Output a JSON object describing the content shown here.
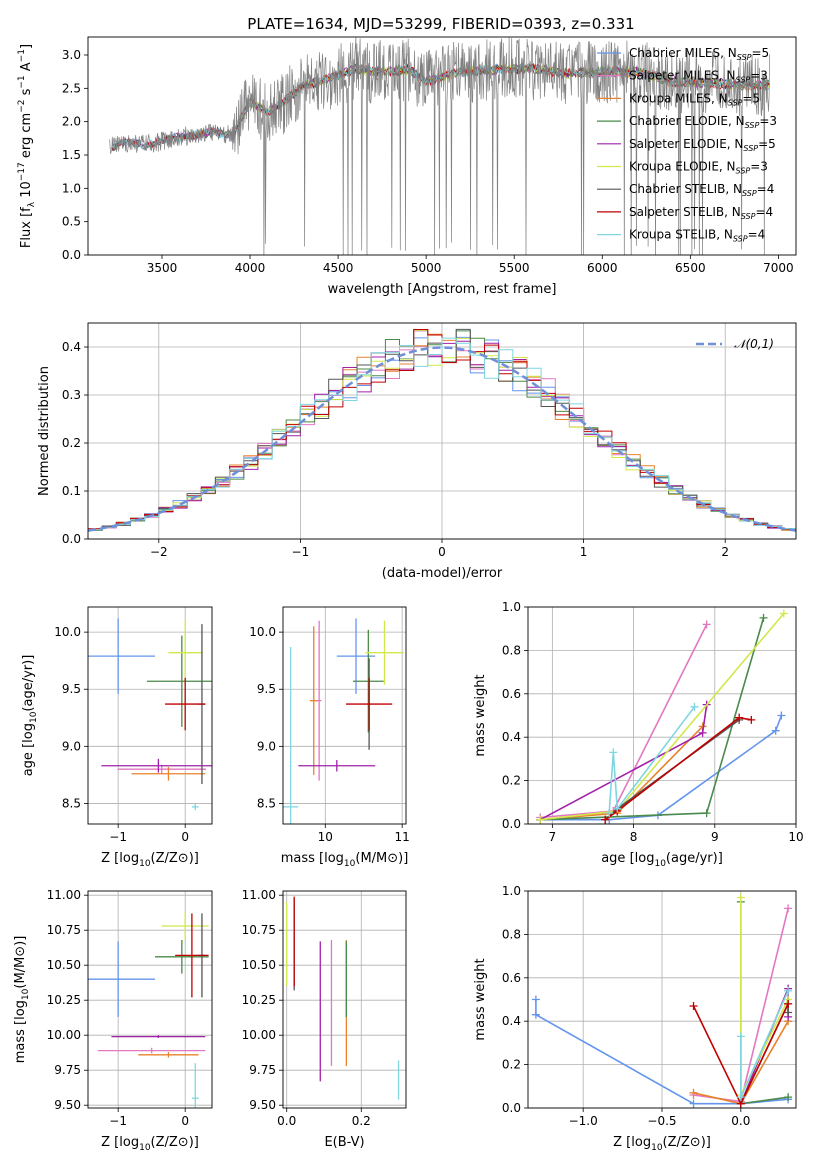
{
  "figure": {
    "title": "PLATE=1634, MJD=53299, FIBERID=0393, z=0.331"
  },
  "series_meta": [
    {
      "name": "Chabrier MILES, N$_{SSP}$=5",
      "label": "Chabrier MILES, N",
      "n": "=5",
      "color": "#6495ed"
    },
    {
      "name": "Salpeter MILES, N$_{SSP}$=3",
      "label": "Salpeter MILES, N",
      "n": "=3",
      "color": "#e377c2"
    },
    {
      "name": "Kroupa MILES, N$_{SSP}$=5",
      "label": "Kroupa MILES, N",
      "n": "=5",
      "color": "#e8822c"
    },
    {
      "name": "Chabrier ELODIE, N$_{SSP}$=3",
      "label": "Chabrier ELODIE, N",
      "n": "=3",
      "color": "#4a8a4a"
    },
    {
      "name": "Salpeter ELODIE, N$_{SSP}$=5",
      "label": "Salpeter ELODIE, N",
      "n": "=5",
      "color": "#a020a8"
    },
    {
      "name": "Kroupa ELODIE, N$_{SSP}$=3",
      "label": "Kroupa ELODIE, N",
      "n": "=3",
      "color": "#d2e84a"
    },
    {
      "name": "Chabrier STELIB, N$_{SSP}$=4",
      "label": "Chabrier STELIB, N",
      "n": "=4",
      "color": "#555555"
    },
    {
      "name": "Salpeter STELIB, N$_{SSP}$=4",
      "label": "Salpeter STELIB, N",
      "n": "=4",
      "color": "#c00000"
    },
    {
      "name": "Kroupa STELIB, N$_{SSP}$=4",
      "label": "Kroupa STELIB, N",
      "n": "=4",
      "color": "#7fd6e0"
    }
  ],
  "chart_data": [
    {
      "id": "spectrum",
      "type": "line",
      "title": "PLATE=1634, MJD=53299, FIBERID=0393, z=0.331",
      "xlabel": "wavelength [Angstrom, rest frame]",
      "ylabel": "Flux [f_λ 10^{-17} erg cm^{-2} s^{-1} A^{-1}]",
      "xlim": [
        3080,
        7100
      ],
      "ylim": [
        0,
        3.27
      ],
      "xticks": [
        3500,
        4000,
        4500,
        5000,
        5500,
        6000,
        6500,
        7000
      ],
      "yticks": [
        0.0,
        0.5,
        1.0,
        1.5,
        2.0,
        2.5,
        3.0
      ],
      "data_flux_envelope": {
        "x": [
          3200,
          3300,
          3400,
          3500,
          3600,
          3700,
          3800,
          3900,
          4000,
          4100,
          4200,
          4300,
          4400,
          4500,
          4600,
          4700,
          4800,
          4900,
          5000,
          5200,
          5400,
          5600,
          5800,
          6000,
          6200,
          6400,
          6600,
          6800,
          6950
        ],
        "y": [
          1.62,
          1.68,
          1.66,
          1.7,
          1.78,
          1.8,
          1.85,
          1.8,
          2.3,
          2.15,
          2.3,
          2.55,
          2.6,
          2.7,
          2.8,
          2.75,
          2.75,
          2.78,
          2.6,
          2.75,
          2.78,
          2.8,
          2.72,
          2.75,
          2.75,
          2.6,
          2.58,
          2.55,
          2.55
        ]
      },
      "data_noise_amplitude": 0.6,
      "legend": "upper right"
    },
    {
      "id": "residuals",
      "type": "histogram",
      "xlabel": "(data-model)/error",
      "ylabel": "Normed distribution",
      "xlim": [
        -2.5,
        2.5
      ],
      "ylim": [
        0,
        0.45
      ],
      "xticks": [
        -2,
        -1,
        0,
        1,
        2
      ],
      "yticks": [
        0.0,
        0.1,
        0.2,
        0.3,
        0.4
      ],
      "reference": {
        "name": "𝒩(0,1)",
        "mean": 0,
        "sigma": 1
      },
      "bin_width": 0.1,
      "legend": "upper right"
    },
    {
      "id": "age_vs_Z",
      "type": "errorbar",
      "xlabel": "Z [log10(Z/Z⊙)]",
      "ylabel": "age [log10(age/yr)]",
      "xlim": [
        -1.45,
        0.4
      ],
      "ylim": [
        8.32,
        10.22
      ],
      "xticks": [
        -1,
        0
      ],
      "yticks": [
        8.5,
        9.0,
        9.5,
        10.0
      ],
      "points": [
        {
          "s": 0,
          "x": -1.0,
          "xerr": 0.55,
          "y": 9.79,
          "yerr": 0.33
        },
        {
          "s": 1,
          "x": -0.35,
          "xerr": 0.66,
          "y": 8.8,
          "yerr": 0.04
        },
        {
          "s": 2,
          "x": -0.25,
          "xerr": 0.55,
          "y": 8.76,
          "yerr": 0.06
        },
        {
          "s": 3,
          "x": -0.05,
          "xerr": 0.52,
          "y": 9.57,
          "yerr": 0.4
        },
        {
          "s": 4,
          "x": -0.4,
          "xerr": 0.85,
          "y": 8.83,
          "yerr": 0.06
        },
        {
          "s": 5,
          "x": 0.0,
          "xerr": 0.25,
          "y": 9.82,
          "yerr": 0.28
        },
        {
          "s": 6,
          "x": 0.25,
          "xerr": 0.05,
          "y": 9.37,
          "yerr": 0.7
        },
        {
          "s": 7,
          "x": 0.0,
          "xerr": 0.3,
          "y": 9.37,
          "yerr": 0.23
        },
        {
          "s": 8,
          "x": 0.15,
          "xerr": 0.05,
          "y": 8.47,
          "yerr": 0.03
        }
      ]
    },
    {
      "id": "age_vs_mass",
      "type": "errorbar",
      "xlabel": "mass [log10(M/M⊙)]",
      "ylabel": "",
      "xlim": [
        9.45,
        11.05
      ],
      "ylim": [
        8.32,
        10.22
      ],
      "xticks": [
        9,
        10,
        11
      ],
      "yticks": [
        8.5,
        9.0,
        9.5,
        10.0
      ],
      "points": [
        {
          "s": 0,
          "x": 10.4,
          "xerr": 0.25,
          "y": 9.79,
          "yerr": 0.33
        },
        {
          "s": 1,
          "x": 9.92,
          "xerr": 0.03,
          "y": 9.4,
          "yerr": 0.7
        },
        {
          "s": 2,
          "x": 9.85,
          "xerr": 0.05,
          "y": 9.4,
          "yerr": 0.65
        },
        {
          "s": 3,
          "x": 10.56,
          "xerr": 0.2,
          "y": 9.57,
          "yerr": 0.45
        },
        {
          "s": 4,
          "x": 10.15,
          "xerr": 0.5,
          "y": 8.83,
          "yerr": 0.05
        },
        {
          "s": 5,
          "x": 10.77,
          "xerr": 0.25,
          "y": 9.82,
          "yerr": 0.28
        },
        {
          "s": 6,
          "x": 10.57,
          "xerr": 0.02,
          "y": 9.37,
          "yerr": 0.4
        },
        {
          "s": 7,
          "x": 10.57,
          "xerr": 0.3,
          "y": 9.37,
          "yerr": 0.23
        },
        {
          "s": 8,
          "x": 9.55,
          "xerr": 0.1,
          "y": 8.47,
          "yerr": 1.4
        }
      ]
    },
    {
      "id": "mass_weight_vs_age",
      "type": "line",
      "xlabel": "age [log10(age/yr)]",
      "ylabel": "mass weight",
      "xlim": [
        6.7,
        10.0
      ],
      "ylim": [
        0,
        1.0
      ],
      "xticks": [
        7,
        8,
        9,
        10
      ],
      "yticks": [
        0.0,
        0.2,
        0.4,
        0.6,
        0.8,
        1.0
      ],
      "series": [
        {
          "s": 0,
          "x": [
            6.85,
            7.7,
            8.3,
            9.75,
            9.82
          ],
          "y": [
            0.02,
            0.02,
            0.04,
            0.43,
            0.5
          ]
        },
        {
          "s": 1,
          "x": [
            6.85,
            7.75,
            8.9
          ],
          "y": [
            0.03,
            0.06,
            0.92
          ]
        },
        {
          "s": 2,
          "x": [
            6.85,
            7.8,
            8.85
          ],
          "y": [
            0.02,
            0.05,
            0.45
          ]
        },
        {
          "s": 3,
          "x": [
            6.85,
            8.9,
            9.6
          ],
          "y": [
            0.02,
            0.05,
            0.95
          ]
        },
        {
          "s": 4,
          "x": [
            6.85,
            8.85,
            8.9
          ],
          "y": [
            0.02,
            0.42,
            0.55
          ]
        },
        {
          "s": 5,
          "x": [
            6.85,
            7.8,
            9.85
          ],
          "y": [
            0.02,
            0.06,
            0.97
          ]
        },
        {
          "s": 6,
          "x": [
            7.65,
            7.8,
            9.3
          ],
          "y": [
            0.02,
            0.07,
            0.48
          ]
        },
        {
          "s": 7,
          "x": [
            7.65,
            7.8,
            9.3,
            9.45
          ],
          "y": [
            0.02,
            0.06,
            0.49,
            0.48
          ]
        },
        {
          "s": 8,
          "x": [
            7.7,
            7.75,
            7.8,
            8.75
          ],
          "y": [
            0.05,
            0.33,
            0.07,
            0.54
          ]
        }
      ]
    },
    {
      "id": "mass_vs_Z",
      "type": "errorbar",
      "xlabel": "Z [log10(Z/Z⊙)]",
      "ylabel": "mass [log10(M/M⊙)]",
      "xlim": [
        -1.45,
        0.4
      ],
      "ylim": [
        9.48,
        11.03
      ],
      "xticks": [
        -1,
        0
      ],
      "yticks": [
        9.5,
        9.75,
        10.0,
        10.25,
        10.5,
        10.75,
        11.0
      ],
      "points": [
        {
          "s": 0,
          "x": -1.0,
          "xerr": 0.55,
          "y": 10.4,
          "yerr": 0.27
        },
        {
          "s": 1,
          "x": -0.5,
          "xerr": 0.8,
          "y": 9.89,
          "yerr": 0.02
        },
        {
          "s": 2,
          "x": -0.25,
          "xerr": 0.45,
          "y": 9.86,
          "yerr": 0.02
        },
        {
          "s": 3,
          "x": -0.05,
          "xerr": 0.4,
          "y": 10.56,
          "yerr": 0.12
        },
        {
          "s": 4,
          "x": -0.4,
          "xerr": 0.7,
          "y": 9.99,
          "yerr": 0.01
        },
        {
          "s": 5,
          "x": 0.0,
          "xerr": 0.35,
          "y": 10.78,
          "yerr": 0.1
        },
        {
          "s": 6,
          "x": 0.25,
          "xerr": 0.05,
          "y": 10.57,
          "yerr": 0.3
        },
        {
          "s": 7,
          "x": 0.1,
          "xerr": 0.25,
          "y": 10.57,
          "yerr": 0.3
        },
        {
          "s": 8,
          "x": 0.15,
          "xerr": 0.05,
          "y": 9.55,
          "yerr": 0.25
        }
      ]
    },
    {
      "id": "mass_vs_ebv",
      "type": "errorbar",
      "xlabel": "E(B-V)",
      "ylabel": "",
      "xlim": [
        -0.01,
        0.32
      ],
      "ylim": [
        9.48,
        11.03
      ],
      "xticks": [
        0.0,
        0.2
      ],
      "yticks": [
        9.5,
        9.75,
        10.0,
        10.25,
        10.5,
        10.75,
        11.0
      ],
      "points": [
        {
          "s": 0,
          "x": 0.16,
          "xerr": 0,
          "y": 10.4,
          "yerr": 0.27
        },
        {
          "s": 1,
          "x": 0.12,
          "xerr": 0,
          "y": 10.23,
          "yerr": 0.45
        },
        {
          "s": 2,
          "x": 0.16,
          "xerr": 0,
          "y": 10.23,
          "yerr": 0.45
        },
        {
          "s": 3,
          "x": 0.16,
          "xerr": 0,
          "y": 10.4,
          "yerr": 0.27
        },
        {
          "s": 4,
          "x": 0.09,
          "xerr": 0,
          "y": 10.17,
          "yerr": 0.5
        },
        {
          "s": 5,
          "x": 0.0,
          "xerr": 0,
          "y": 10.65,
          "yerr": 0.3
        },
        {
          "s": 6,
          "x": 0.02,
          "xerr": 0,
          "y": 10.65,
          "yerr": 0.33
        },
        {
          "s": 7,
          "x": 0.02,
          "xerr": 0,
          "y": 10.67,
          "yerr": 0.32
        },
        {
          "s": 8,
          "x": 0.3,
          "xerr": 0,
          "y": 9.68,
          "yerr": 0.14
        }
      ]
    },
    {
      "id": "mass_weight_vs_Z",
      "type": "line",
      "xlabel": "Z [log10(Z/Z⊙)]",
      "ylabel": "mass weight",
      "xlim": [
        -1.35,
        0.35
      ],
      "ylim": [
        0,
        1.0
      ],
      "xticks": [
        -1.0,
        -0.5,
        0.0
      ],
      "yticks": [
        0.0,
        0.2,
        0.4,
        0.6,
        0.8,
        1.0
      ],
      "series": [
        {
          "s": 0,
          "x": [
            -1.3,
            -1.3,
            -0.3,
            0.0,
            0.3
          ],
          "y": [
            0.5,
            0.43,
            0.02,
            0.02,
            0.04
          ]
        },
        {
          "s": 1,
          "x": [
            -0.3,
            0.0,
            0.3
          ],
          "y": [
            0.06,
            0.03,
            0.92
          ]
        },
        {
          "s": 2,
          "x": [
            -0.3,
            0.0,
            0.3
          ],
          "y": [
            0.07,
            0.02,
            0.4
          ]
        },
        {
          "s": 3,
          "x": [
            0.0,
            0.0,
            0.3
          ],
          "y": [
            0.95,
            0.02,
            0.05
          ]
        },
        {
          "s": 4,
          "x": [
            0.0,
            0.3,
            0.3
          ],
          "y": [
            0.02,
            0.55,
            0.42
          ]
        },
        {
          "s": 5,
          "x": [
            0.0,
            0.0,
            0.3
          ],
          "y": [
            0.97,
            0.06,
            0.5
          ]
        },
        {
          "s": 6,
          "x": [
            0.0,
            0.3,
            0.3
          ],
          "y": [
            0.02,
            0.48,
            0.44
          ]
        },
        {
          "s": 7,
          "x": [
            -0.3,
            0.0,
            0.3
          ],
          "y": [
            0.47,
            0.02,
            0.48
          ]
        },
        {
          "s": 8,
          "x": [
            0.0,
            0.0,
            0.3
          ],
          "y": [
            0.33,
            0.05,
            0.54
          ]
        }
      ]
    }
  ]
}
